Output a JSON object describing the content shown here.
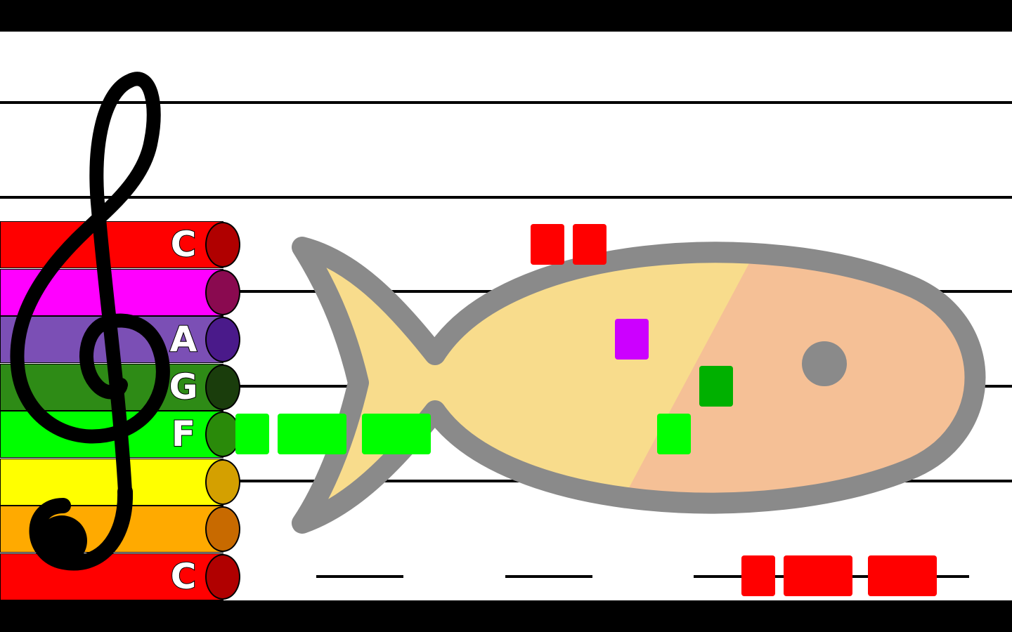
{
  "game": {
    "keys": [
      {
        "id": "c-high",
        "label": "C",
        "color": "#ff0000",
        "cap_color": "#b00000"
      },
      {
        "id": "b",
        "label": "",
        "color": "#ff00ff",
        "cap_color": "#8a0a50"
      },
      {
        "id": "a",
        "label": "A",
        "color": "#7b4fb5",
        "cap_color": "#4a1a8a"
      },
      {
        "id": "g",
        "label": "G",
        "color": "#2e8b16",
        "cap_color": "#1a3d0c"
      },
      {
        "id": "f",
        "label": "F",
        "color": "#00ff00",
        "cap_color": "#2a8a0a"
      },
      {
        "id": "e",
        "label": "",
        "color": "#ffff00",
        "cap_color": "#d4a000"
      },
      {
        "id": "d",
        "label": "",
        "color": "#ffaa00",
        "cap_color": "#c86a00"
      },
      {
        "id": "c-low",
        "label": "C",
        "color": "#ff0000",
        "cap_color": "#b00000"
      }
    ],
    "notes": [
      {
        "pitch": "C",
        "beat": 0,
        "color": "#ff0000"
      },
      {
        "pitch": "C",
        "beat": 1,
        "color": "#ff0000"
      },
      {
        "pitch": "B",
        "beat": 2,
        "color": "#cc00ff"
      },
      {
        "pitch": "A",
        "beat": 3,
        "color": "#00b000"
      },
      {
        "pitch": "F",
        "beat": 4,
        "color": "#00ff00"
      },
      {
        "pitch": "F",
        "beat": 5,
        "color": "#00ff00"
      },
      {
        "pitch": "F",
        "beat": 6,
        "color": "#00ff00"
      },
      {
        "pitch": "F",
        "beat": 7,
        "color": "#00ff00"
      },
      {
        "pitch": "C",
        "beat": 8,
        "color": "#ff0000"
      },
      {
        "pitch": "C",
        "beat": 9,
        "color": "#ff0000"
      },
      {
        "pitch": "C",
        "beat": 10,
        "color": "#ff0000"
      }
    ],
    "background_picture": "fish",
    "fish_colors": {
      "body": "#f8dc8c",
      "belly": "#f5c096",
      "outline": "#8a8a8a",
      "eye": "#8a8a8a"
    }
  }
}
